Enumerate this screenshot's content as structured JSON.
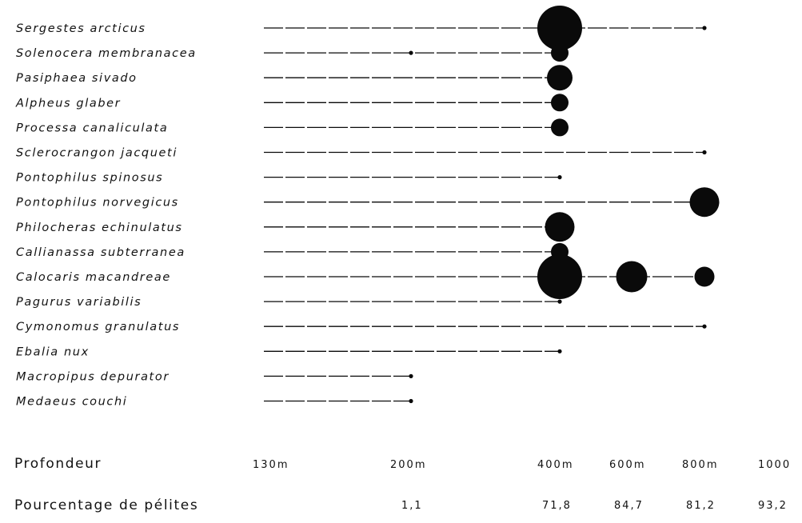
{
  "chart_data": {
    "type": "scatter",
    "title": "",
    "depth_label": "Profondeur",
    "pelite_label": "Pourcentage de pélites",
    "depths": [
      "130m",
      "200m",
      "400m",
      "600m",
      "800m",
      "1000"
    ],
    "pelites": [
      "",
      "1,1",
      "71,8",
      "84,7",
      "81,2",
      "93,2"
    ],
    "species": [
      {
        "name": "Sergestes arcticus",
        "range": [
          "130m",
          "800m"
        ],
        "points": [
          {
            "depth": "400m",
            "size": "very-large"
          },
          {
            "depth": "800m",
            "size": "trace"
          }
        ]
      },
      {
        "name": "Solenocera membranacea",
        "range": [
          "130m",
          "400m"
        ],
        "points": [
          {
            "depth": "200m",
            "size": "trace"
          },
          {
            "depth": "400m",
            "size": "small"
          }
        ]
      },
      {
        "name": "Pasiphaea sivado",
        "range": [
          "130m",
          "400m"
        ],
        "points": [
          {
            "depth": "400m",
            "size": "medium"
          }
        ]
      },
      {
        "name": "Alpheus glaber",
        "range": [
          "130m",
          "400m"
        ],
        "points": [
          {
            "depth": "400m",
            "size": "small"
          }
        ]
      },
      {
        "name": "Processa canaliculata",
        "range": [
          "130m",
          "400m"
        ],
        "points": [
          {
            "depth": "400m",
            "size": "small"
          }
        ]
      },
      {
        "name": "Sclerocrangon jacqueti",
        "range": [
          "130m",
          "800m"
        ],
        "points": [
          {
            "depth": "800m",
            "size": "trace"
          }
        ]
      },
      {
        "name": "Pontophilus spinosus",
        "range": [
          "130m",
          "400m"
        ],
        "points": [
          {
            "depth": "400m",
            "size": "trace"
          }
        ]
      },
      {
        "name": "Pontophilus norvegicus",
        "range": [
          "130m",
          "800m"
        ],
        "points": [
          {
            "depth": "800m",
            "size": "medium-large"
          }
        ]
      },
      {
        "name": "Philocheras echinulatus",
        "range": [
          "130m",
          "400m"
        ],
        "points": [
          {
            "depth": "400m",
            "size": "medium-large"
          }
        ]
      },
      {
        "name": "Callianassa subterranea",
        "range": [
          "130m",
          "400m"
        ],
        "points": [
          {
            "depth": "400m",
            "size": "small"
          }
        ]
      },
      {
        "name": "Calocaris macandreae",
        "range": [
          "130m",
          "800m"
        ],
        "points": [
          {
            "depth": "400m",
            "size": "very-large"
          },
          {
            "depth": "600m",
            "size": "large"
          },
          {
            "depth": "800m",
            "size": "small-medium"
          }
        ]
      },
      {
        "name": "Pagurus variabilis",
        "range": [
          "130m",
          "400m"
        ],
        "points": [
          {
            "depth": "400m",
            "size": "trace"
          }
        ]
      },
      {
        "name": "Cymonomus granulatus",
        "range": [
          "130m",
          "800m"
        ],
        "points": [
          {
            "depth": "800m",
            "size": "trace"
          }
        ]
      },
      {
        "name": "Ebalia nux",
        "range": [
          "130m",
          "400m"
        ],
        "points": [
          {
            "depth": "400m",
            "size": "trace"
          }
        ]
      },
      {
        "name": "Macropipus depurator",
        "range": [
          "130m",
          "200m"
        ],
        "points": [
          {
            "depth": "200m",
            "size": "trace"
          }
        ]
      },
      {
        "name": "Medaeus couchi",
        "range": [
          "130m",
          "200m"
        ],
        "points": [
          {
            "depth": "200m",
            "size": "trace"
          }
        ]
      }
    ],
    "size_scale": [
      "trace",
      "small",
      "small-medium",
      "medium",
      "medium-large",
      "large",
      "very-large"
    ],
    "colors": {
      "ink": "#0a0a0a",
      "background": "#ffffff"
    }
  }
}
